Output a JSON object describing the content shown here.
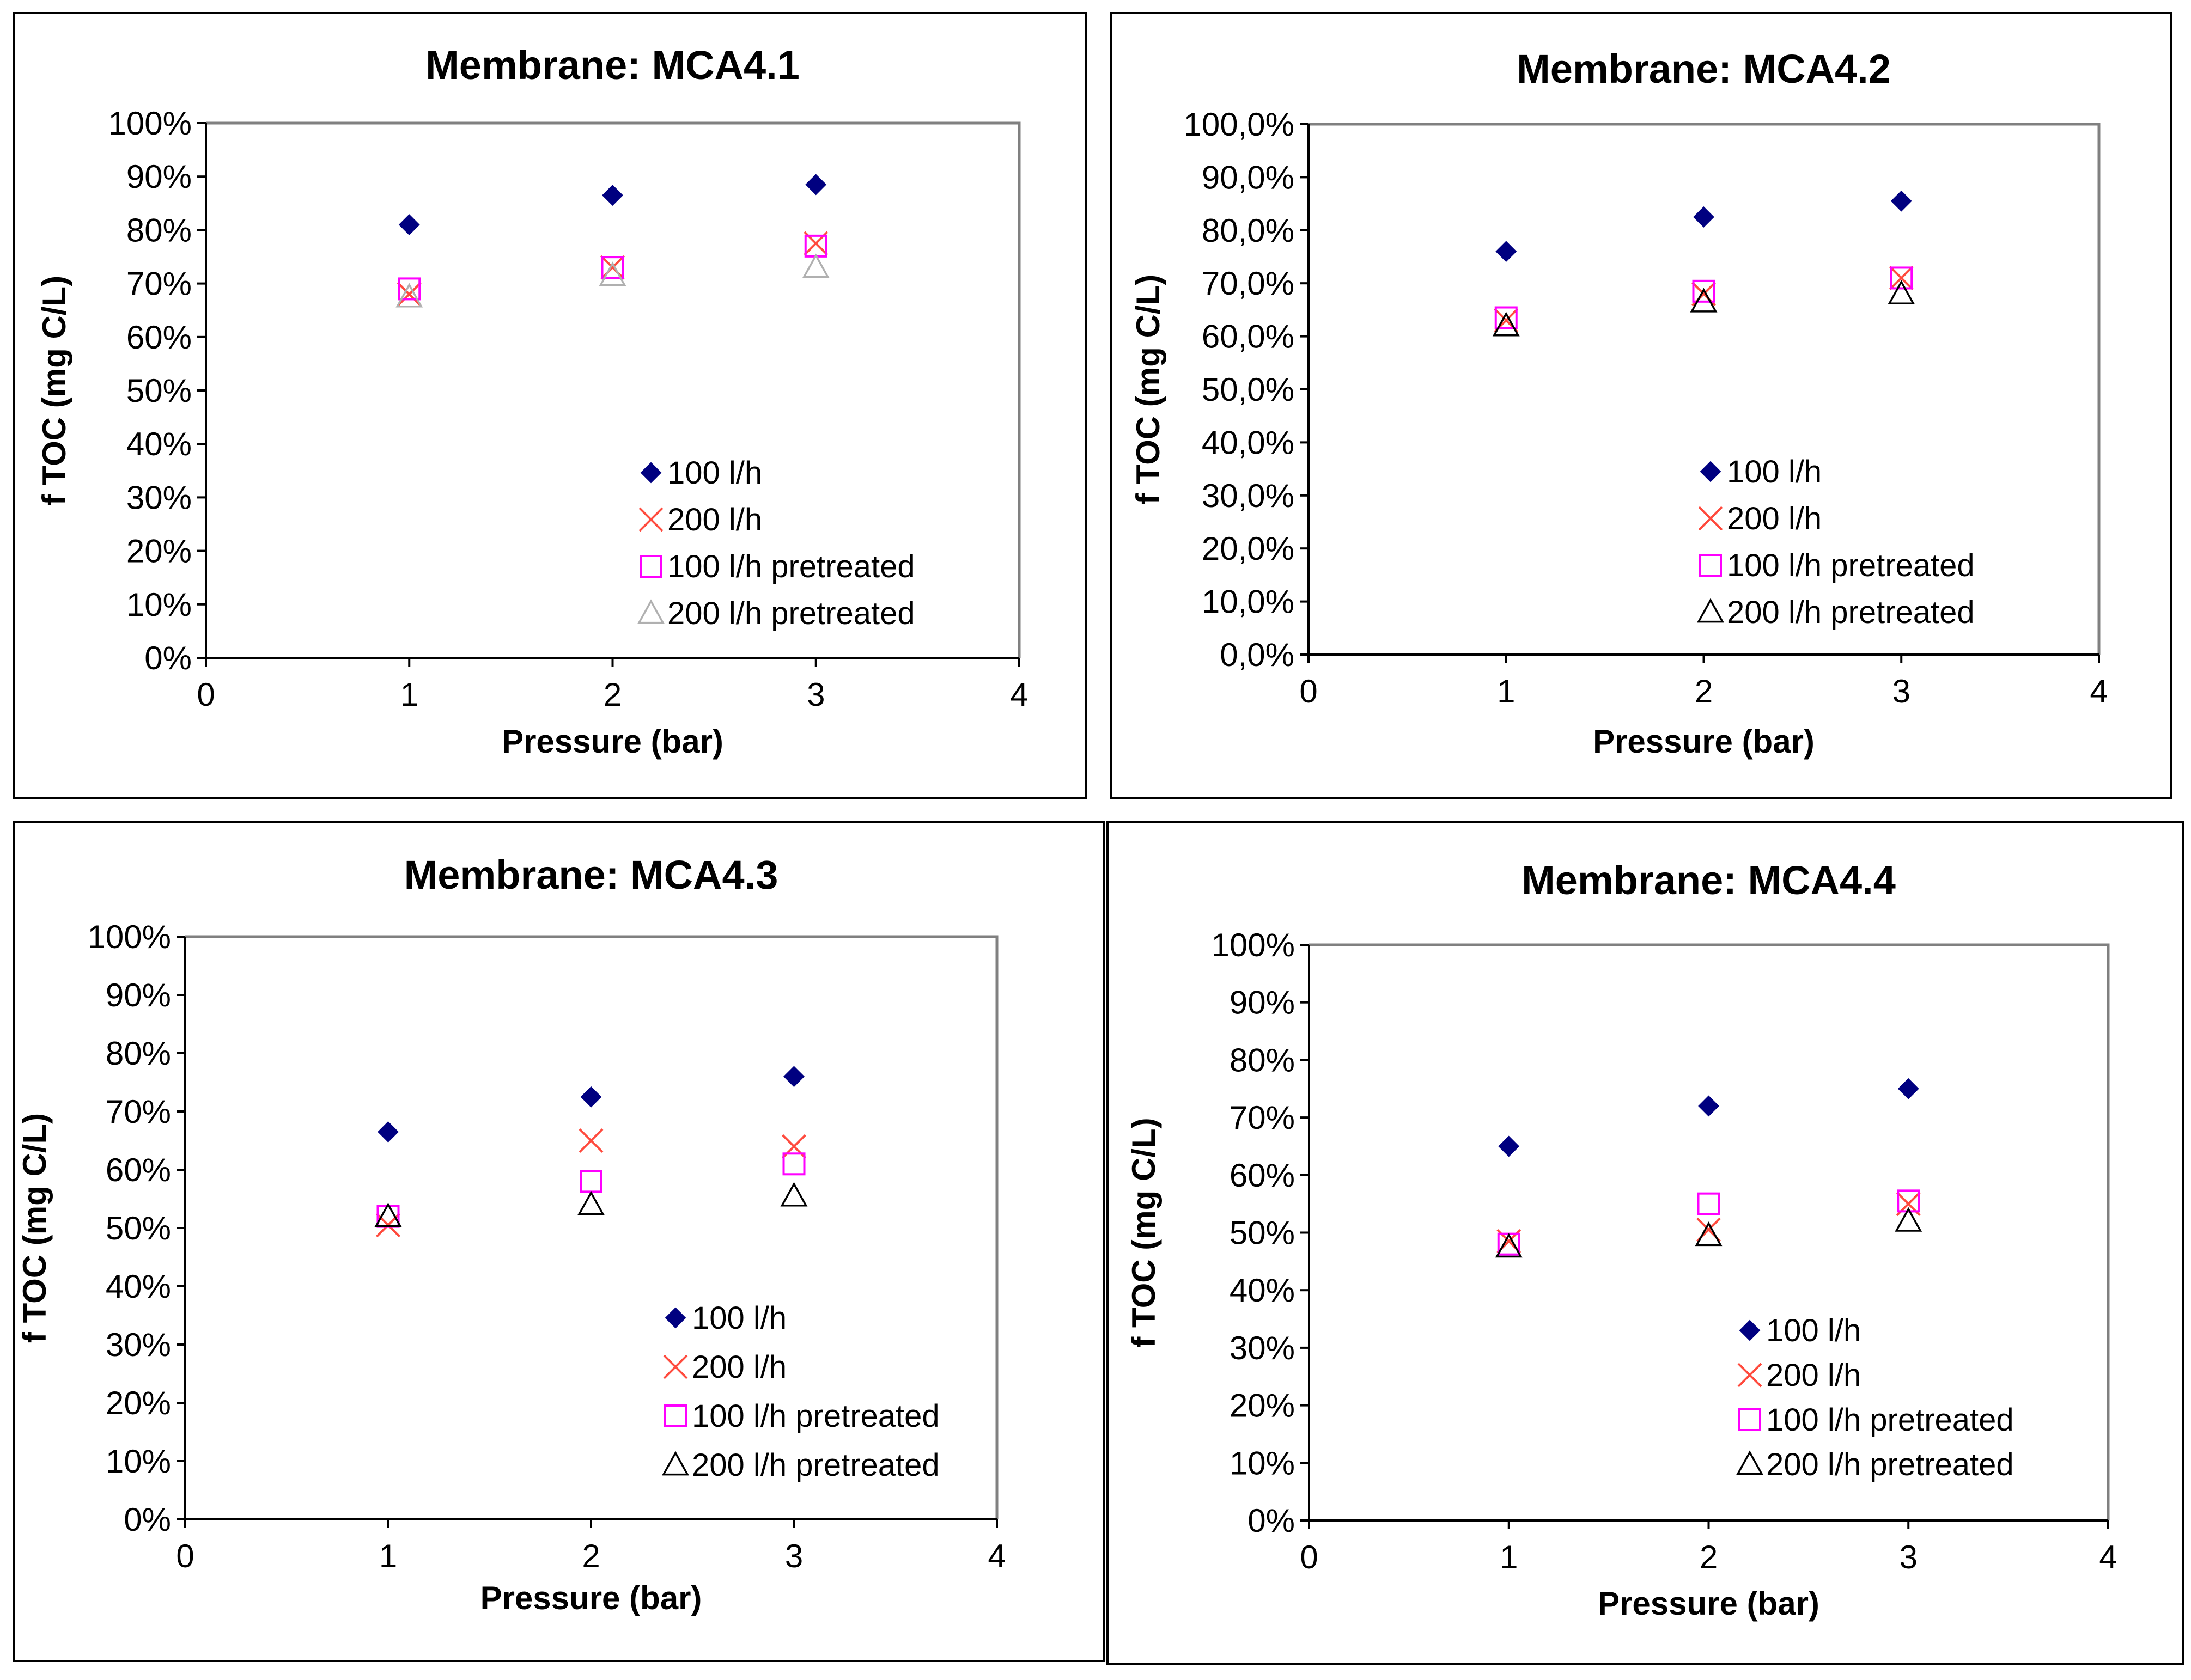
{
  "colors": {
    "series_100": "#000080",
    "series_200": "#ff4a3d",
    "series_100p": "#ff00ff",
    "series_200p_grey": "#b0b0b0",
    "series_200p_black": "#000000",
    "axes": "#000000",
    "plot_frame": "#808080",
    "panel_border": "#000000"
  },
  "chart_data": [
    {
      "type": "scatter",
      "title": "Membrane: MCA4.1",
      "xlabel": "Pressure (bar)",
      "ylabel": "f TOC (mg C/L)",
      "xlim": [
        0,
        4
      ],
      "ylim": [
        0,
        1
      ],
      "grid": false,
      "legend": "bottom-right",
      "x_ticks": [
        "0",
        "1",
        "2",
        "3",
        "4"
      ],
      "y_ticks": [
        "0%",
        "10%",
        "20%",
        "30%",
        "40%",
        "50%",
        "60%",
        "70%",
        "80%",
        "90%",
        "100%"
      ],
      "series": [
        {
          "name": "100 l/h",
          "marker": "diamond",
          "color": "#000080",
          "x": [
            1,
            2,
            3
          ],
          "y": [
            0.81,
            0.865,
            0.885
          ]
        },
        {
          "name": "200 l/h",
          "marker": "x",
          "color": "#ff4a3d",
          "x": [
            1,
            2,
            3
          ],
          "y": [
            0.68,
            0.73,
            0.775
          ]
        },
        {
          "name": "100 l/h pretreated",
          "marker": "square",
          "color": "#ff00ff",
          "x": [
            1,
            2,
            3
          ],
          "y": [
            0.69,
            0.73,
            0.77
          ]
        },
        {
          "name": "200 l/h pretreated",
          "marker": "triangle",
          "color": "#b0b0b0",
          "x": [
            1,
            2,
            3
          ],
          "y": [
            0.675,
            0.715,
            0.73
          ]
        }
      ]
    },
    {
      "type": "scatter",
      "title": "Membrane: MCA4.2",
      "xlabel": "Pressure (bar)",
      "ylabel": "f TOC (mg C/L)",
      "xlim": [
        0,
        4
      ],
      "ylim": [
        0,
        1
      ],
      "grid": false,
      "legend": "bottom-right",
      "x_ticks": [
        "0",
        "1",
        "2",
        "3",
        "4"
      ],
      "y_ticks": [
        "0,0%",
        "10,0%",
        "20,0%",
        "30,0%",
        "40,0%",
        "50,0%",
        "60,0%",
        "70,0%",
        "80,0%",
        "90,0%",
        "100,0%"
      ],
      "series": [
        {
          "name": "100 l/h",
          "marker": "diamond",
          "color": "#000080",
          "x": [
            1,
            2,
            3
          ],
          "y": [
            0.76,
            0.825,
            0.855
          ]
        },
        {
          "name": "200 l/h",
          "marker": "x",
          "color": "#ff4a3d",
          "x": [
            1,
            2,
            3
          ],
          "y": [
            0.63,
            0.68,
            0.71
          ]
        },
        {
          "name": "100 l/h pretreated",
          "marker": "square",
          "color": "#ff00ff",
          "x": [
            1,
            2,
            3
          ],
          "y": [
            0.635,
            0.685,
            0.71
          ]
        },
        {
          "name": "200 l/h pretreated",
          "marker": "triangle",
          "color": "#000000",
          "x": [
            1,
            2,
            3
          ],
          "y": [
            0.62,
            0.665,
            0.68
          ]
        }
      ]
    },
    {
      "type": "scatter",
      "title": "Membrane: MCA4.3",
      "xlabel": "Pressure (bar)",
      "ylabel": "f TOC (mg C/L)",
      "xlim": [
        0,
        4
      ],
      "ylim": [
        0,
        1
      ],
      "grid": false,
      "legend": "bottom-right",
      "x_ticks": [
        "0",
        "1",
        "2",
        "3",
        "4"
      ],
      "y_ticks": [
        "0%",
        "10%",
        "20%",
        "30%",
        "40%",
        "50%",
        "60%",
        "70%",
        "80%",
        "90%",
        "100%"
      ],
      "series": [
        {
          "name": "100 l/h",
          "marker": "diamond",
          "color": "#000080",
          "x": [
            1,
            2,
            3
          ],
          "y": [
            0.665,
            0.725,
            0.76
          ]
        },
        {
          "name": "200 l/h",
          "marker": "x",
          "color": "#ff4a3d",
          "x": [
            1,
            2,
            3
          ],
          "y": [
            0.505,
            0.65,
            0.64
          ]
        },
        {
          "name": "100 l/h pretreated",
          "marker": "square",
          "color": "#ff00ff",
          "x": [
            1,
            2,
            3
          ],
          "y": [
            0.52,
            0.58,
            0.61
          ]
        },
        {
          "name": "200 l/h pretreated",
          "marker": "triangle",
          "color": "#000000",
          "x": [
            1,
            2,
            3
          ],
          "y": [
            0.52,
            0.54,
            0.555
          ]
        }
      ]
    },
    {
      "type": "scatter",
      "title": "Membrane: MCA4.4",
      "xlabel": "Pressure (bar)",
      "ylabel": "f TOC (mg C/L)",
      "xlim": [
        0,
        4
      ],
      "ylim": [
        0,
        1
      ],
      "grid": false,
      "legend": "bottom-right",
      "x_ticks": [
        "0",
        "1",
        "2",
        "3",
        "4"
      ],
      "y_ticks": [
        "0%",
        "10%",
        "20%",
        "30%",
        "40%",
        "50%",
        "60%",
        "70%",
        "80%",
        "90%",
        "100%"
      ],
      "series": [
        {
          "name": "100 l/h",
          "marker": "diamond",
          "color": "#000080",
          "x": [
            1,
            2,
            3
          ],
          "y": [
            0.65,
            0.72,
            0.75
          ]
        },
        {
          "name": "200 l/h",
          "marker": "x",
          "color": "#ff4a3d",
          "x": [
            1,
            2,
            3
          ],
          "y": [
            0.485,
            0.505,
            0.55
          ]
        },
        {
          "name": "100 l/h pretreated",
          "marker": "square",
          "color": "#ff00ff",
          "x": [
            1,
            2,
            3
          ],
          "y": [
            0.48,
            0.55,
            0.555
          ]
        },
        {
          "name": "200 l/h pretreated",
          "marker": "triangle",
          "color": "#000000",
          "x": [
            1,
            2,
            3
          ],
          "y": [
            0.475,
            0.495,
            0.52
          ]
        }
      ]
    }
  ]
}
